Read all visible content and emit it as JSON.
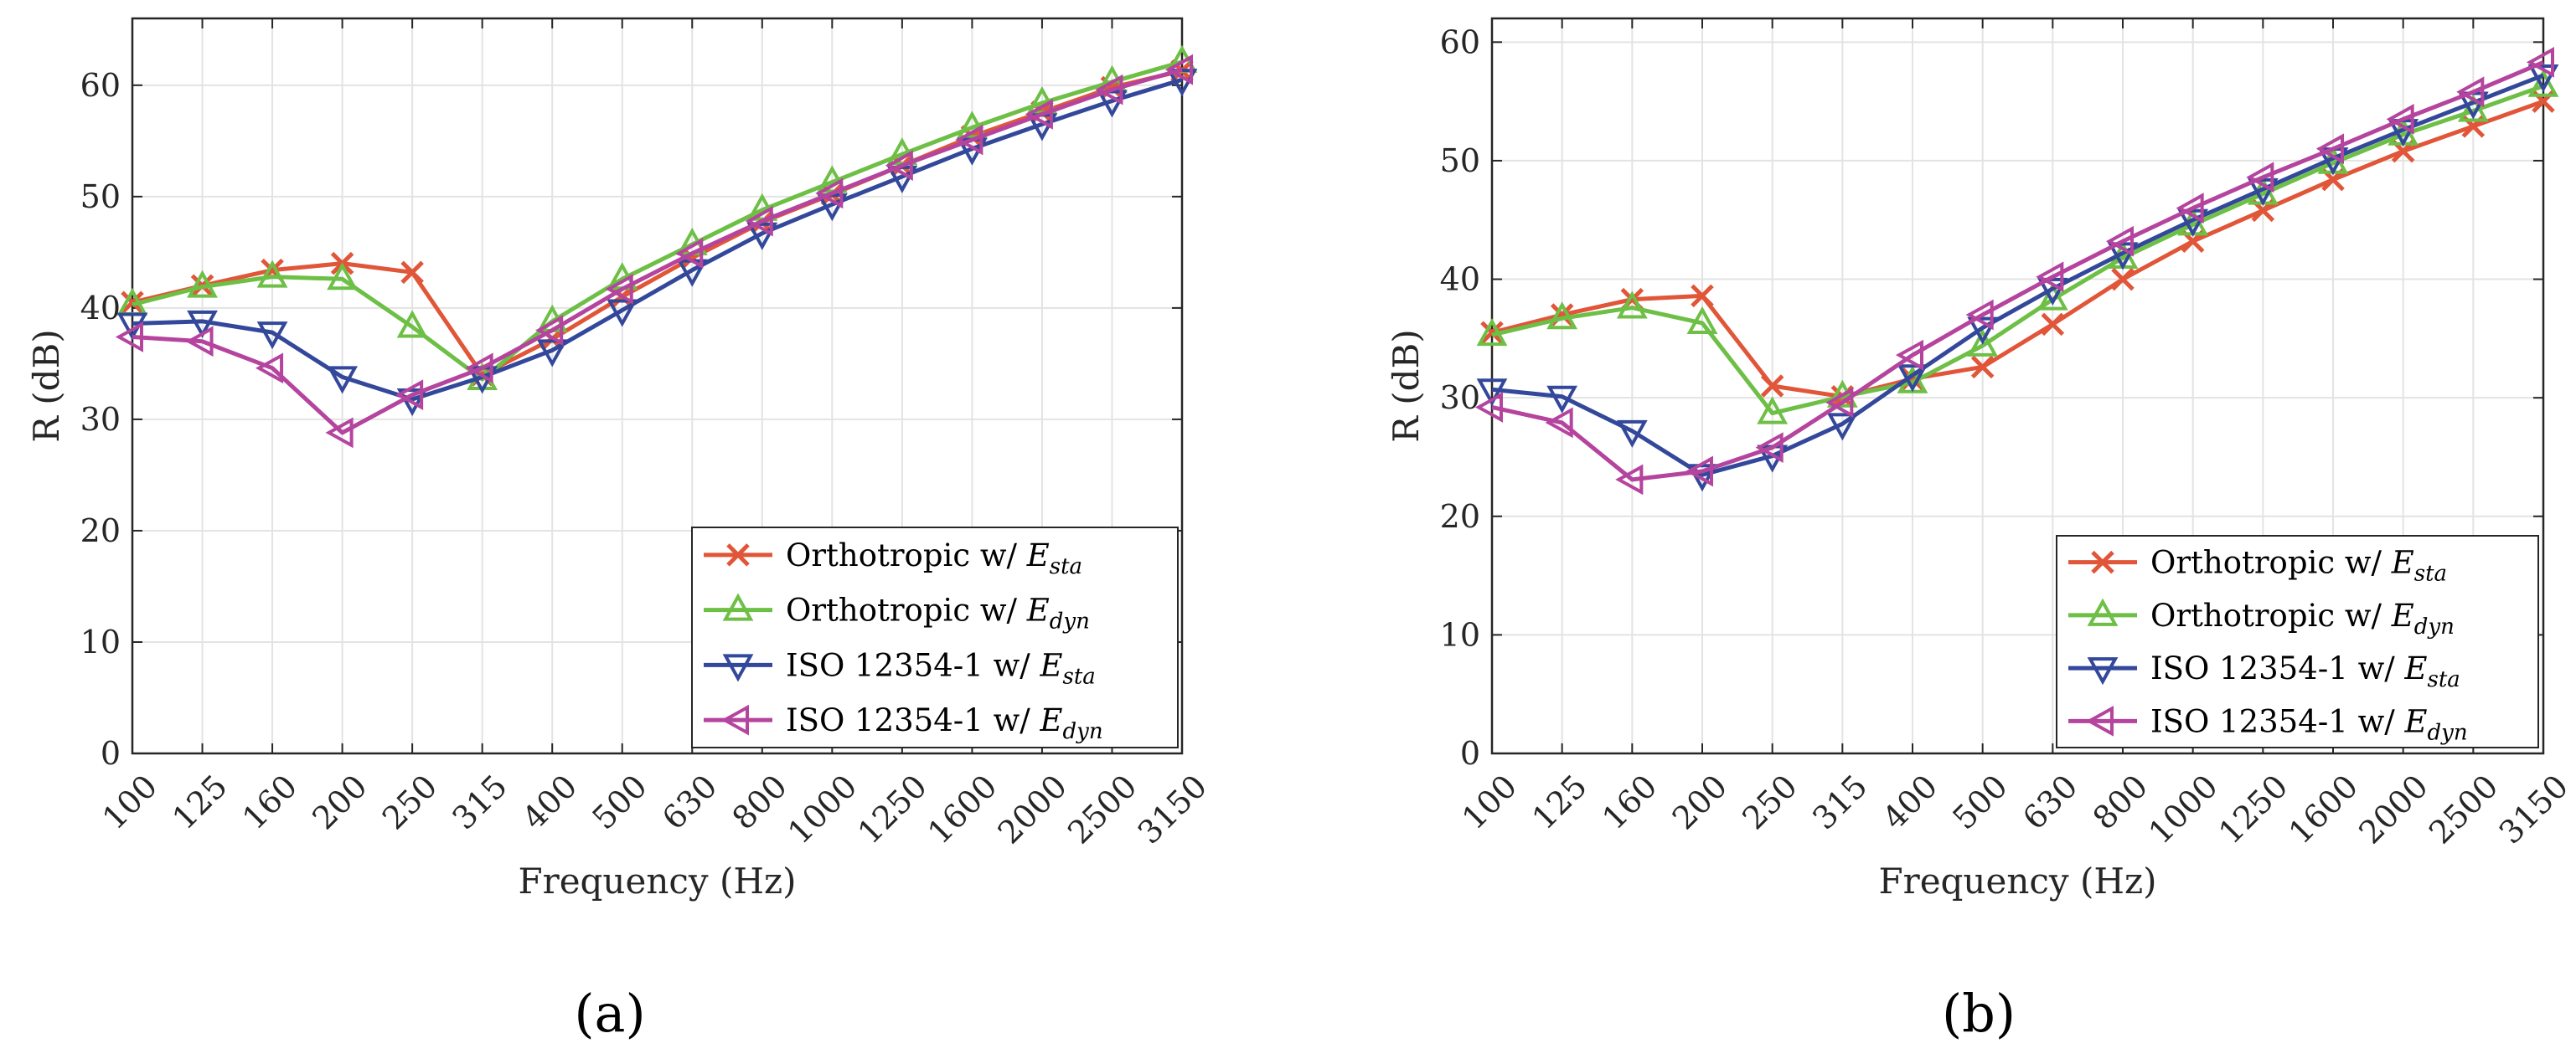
{
  "chart_data": [
    {
      "panel_label": "(a)",
      "type": "line",
      "xlabel": "Frequency (Hz)",
      "ylabel": "R (dB)",
      "ylim": [
        0,
        66
      ],
      "yticks": [
        0,
        10,
        20,
        30,
        40,
        50,
        60
      ],
      "ytick_labels": [
        "0",
        "10",
        "20",
        "30",
        "40",
        "50",
        "60"
      ],
      "categories": [
        "100",
        "125",
        "160",
        "200",
        "250",
        "315",
        "400",
        "500",
        "630",
        "800",
        "1000",
        "1250",
        "1600",
        "2000",
        "2500",
        "3150"
      ],
      "grid": true,
      "legend_position": "bottom-right",
      "series": [
        {
          "name": "Orthotropic w/ E_sta",
          "prefix": "Orthotropic w/ ",
          "symbol": "E",
          "subscript": "sta",
          "color": "#e15538",
          "marker": "x",
          "values": [
            40.5,
            42.0,
            43.4,
            44.0,
            43.2,
            34.0,
            37.2,
            41.0,
            44.5,
            47.7,
            50.2,
            52.8,
            55.4,
            57.6,
            59.8,
            61.3
          ]
        },
        {
          "name": "Orthotropic w/ E_dyn",
          "prefix": "Orthotropic w/ ",
          "symbol": "E",
          "subscript": "dyn",
          "color": "#6dbf45",
          "marker": "triangle-up",
          "values": [
            40.3,
            41.9,
            42.8,
            42.6,
            38.3,
            33.6,
            38.8,
            42.6,
            45.7,
            48.8,
            51.3,
            53.8,
            56.2,
            58.4,
            60.3,
            62.1
          ]
        },
        {
          "name": "ISO 12354-1 w/ E_sta",
          "prefix": "ISO 12354-1 w/ ",
          "symbol": "E",
          "subscript": "sta",
          "color": "#33489b",
          "marker": "triangle-down",
          "values": [
            38.6,
            38.8,
            37.8,
            33.8,
            31.8,
            33.8,
            36.2,
            39.8,
            43.4,
            46.7,
            49.3,
            51.8,
            54.3,
            56.5,
            58.6,
            60.5
          ]
        },
        {
          "name": "ISO 12354-1 w/ E_dyn",
          "prefix": "ISO 12354-1 w/ ",
          "symbol": "E",
          "subscript": "dyn",
          "color": "#b5449e",
          "marker": "triangle-left",
          "values": [
            37.4,
            37.0,
            34.6,
            28.8,
            32.2,
            34.6,
            38.0,
            41.7,
            44.9,
            47.8,
            50.3,
            52.8,
            55.1,
            57.4,
            59.6,
            61.4
          ]
        }
      ]
    },
    {
      "panel_label": "(b)",
      "type": "line",
      "xlabel": "Frequency (Hz)",
      "ylabel": "R (dB)",
      "ylim": [
        0,
        62
      ],
      "yticks": [
        0,
        10,
        20,
        30,
        40,
        50,
        60
      ],
      "ytick_labels": [
        "0",
        "10",
        "20",
        "30",
        "40",
        "50",
        "60"
      ],
      "categories": [
        "100",
        "125",
        "160",
        "200",
        "250",
        "315",
        "400",
        "500",
        "630",
        "800",
        "1000",
        "1250",
        "1600",
        "2000",
        "2500",
        "3150"
      ],
      "grid": true,
      "legend_position": "bottom-right",
      "series": [
        {
          "name": "Orthotropic w/ E_sta",
          "prefix": "Orthotropic w/ ",
          "symbol": "E",
          "subscript": "sta",
          "color": "#e15538",
          "marker": "x",
          "values": [
            35.5,
            37.0,
            38.3,
            38.6,
            31.0,
            30.1,
            31.6,
            32.6,
            36.2,
            40.0,
            43.2,
            45.8,
            48.4,
            50.8,
            52.9,
            55.0
          ]
        },
        {
          "name": "Orthotropic w/ E_dyn",
          "prefix": "Orthotropic w/ ",
          "symbol": "E",
          "subscript": "dyn",
          "color": "#6dbf45",
          "marker": "triangle-up",
          "values": [
            35.3,
            36.7,
            37.6,
            36.3,
            28.7,
            30.1,
            31.3,
            34.4,
            38.3,
            41.8,
            44.6,
            47.2,
            49.8,
            52.2,
            54.2,
            56.3
          ]
        },
        {
          "name": "ISO 12354-1 w/ E_sta",
          "prefix": "ISO 12354-1 w/ ",
          "symbol": "E",
          "subscript": "sta",
          "color": "#33489b",
          "marker": "triangle-down",
          "values": [
            30.7,
            30.1,
            27.2,
            23.5,
            25.1,
            27.8,
            31.9,
            35.9,
            39.2,
            42.2,
            45.0,
            47.6,
            50.2,
            52.6,
            54.9,
            57.2
          ]
        },
        {
          "name": "ISO 12354-1 w/ E_dyn",
          "prefix": "ISO 12354-1 w/ ",
          "symbol": "E",
          "subscript": "dyn",
          "color": "#b5449e",
          "marker": "triangle-left",
          "values": [
            29.2,
            27.9,
            23.1,
            23.8,
            25.8,
            29.6,
            33.6,
            37.0,
            40.2,
            43.2,
            46.0,
            48.6,
            51.0,
            53.5,
            55.8,
            58.3
          ]
        }
      ]
    }
  ]
}
